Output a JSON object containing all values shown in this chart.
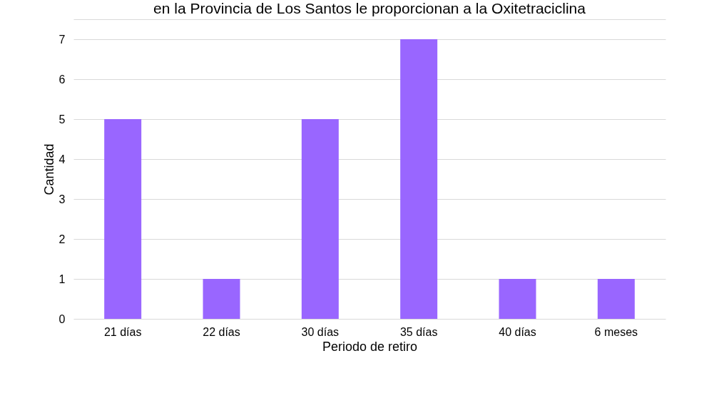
{
  "chart_data": {
    "type": "bar",
    "title": "en la Provincia de Los Santos le proporcionan a la Oxitetraciclina",
    "xlabel": "Periodo de retiro",
    "ylabel": "Cantidad",
    "categories": [
      "21 días",
      "22 días",
      "30 días",
      "35 días",
      "40 días",
      "6 meses"
    ],
    "values": [
      5,
      1,
      5,
      7,
      1,
      1
    ],
    "color": "#9966ff",
    "ylim": [
      0,
      7.5
    ],
    "yticks": [
      0,
      1,
      2,
      3,
      4,
      5,
      6,
      7,
      {
        "value": 7.5,
        "label": null
      }
    ],
    "grid": "y"
  }
}
